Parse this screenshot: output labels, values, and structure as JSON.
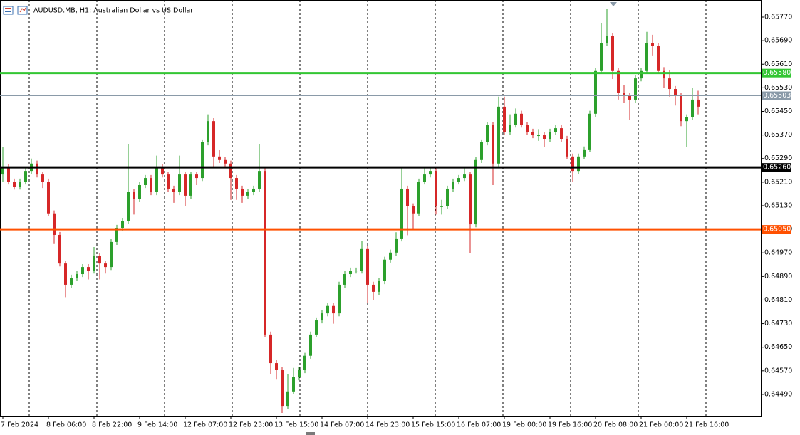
{
  "chart_data": {
    "type": "candlestick",
    "title": "AUDUSD.MB, H1:  Australian Dollar vs US Dollar",
    "up_color": "#2ca02c",
    "down_color": "#d62728",
    "open": [
      0.65236,
      0.6526,
      0.65212,
      0.65195,
      0.65212,
      0.65248,
      0.65273,
      0.65236,
      0.65212,
      0.65104,
      0.65031,
      0.64934,
      0.64862,
      0.64886,
      0.64898,
      0.64922,
      0.6491,
      0.64959,
      0.64934,
      0.64922,
      0.65007,
      0.65055,
      0.65079,
      0.65176,
      0.65152,
      0.652,
      0.65224,
      0.65176,
      0.6526,
      0.65236,
      0.65188,
      0.65176,
      0.65236,
      0.65164,
      0.65236,
      0.65224,
      0.65345,
      0.65417,
      0.65297,
      0.65285,
      0.65273,
      0.65224,
      0.65188,
      0.65164,
      0.65176,
      0.65188,
      0.65248,
      0.64693,
      0.64596,
      0.64572,
      0.64451,
      0.645,
      0.64548,
      0.64572,
      0.64621,
      0.64693,
      0.64741,
      0.64765,
      0.6479,
      0.64765,
      0.64862,
      0.64898,
      0.6491,
      0.6491,
      0.64983,
      0.64862,
      0.64838,
      0.64874,
      0.64947,
      0.64971,
      0.65019,
      0.65188,
      0.65128,
      0.65104,
      0.65212,
      0.65236,
      0.65248,
      0.65128,
      0.65128,
      0.65188,
      0.65212,
      0.65224,
      0.65236,
      0.65067,
      0.65285,
      0.65345,
      0.65405,
      0.65273,
      0.65466,
      0.65381,
      0.65405,
      0.65442,
      0.65405,
      0.65381,
      0.65369,
      0.65369,
      0.65357,
      0.65381,
      0.65393,
      0.65357,
      0.65297,
      0.65248,
      0.65297,
      0.65321,
      0.65442,
      0.65587,
      0.65683,
      0.65707,
      0.65587,
      0.65514,
      0.65502,
      0.6549,
      0.65562,
      0.65587,
      0.65683,
      0.65671,
      0.65587,
      0.65562,
      0.65526,
      0.65502,
      0.65417,
      0.6543,
      0.6549
    ],
    "high": [
      0.6533,
      0.6527,
      0.65222,
      0.65222,
      0.65258,
      0.6529,
      0.65283,
      0.65246,
      0.65222,
      0.65114,
      0.65041,
      0.64944,
      0.64896,
      0.64908,
      0.64932,
      0.64932,
      0.6499,
      0.64969,
      0.64944,
      0.65017,
      0.65065,
      0.65089,
      0.6534,
      0.65186,
      0.6521,
      0.65234,
      0.65234,
      0.653,
      0.6527,
      0.65246,
      0.65198,
      0.653,
      0.65246,
      0.65246,
      0.65246,
      0.65355,
      0.6544,
      0.65427,
      0.6532,
      0.65295,
      0.65283,
      0.65234,
      0.65198,
      0.65186,
      0.65198,
      0.6534,
      0.65258,
      0.64703,
      0.64606,
      0.64582,
      0.6456,
      0.6458,
      0.64582,
      0.64631,
      0.64703,
      0.64751,
      0.64775,
      0.648,
      0.648,
      0.64872,
      0.64908,
      0.6492,
      0.6492,
      0.6501,
      0.64993,
      0.64872,
      0.64884,
      0.64957,
      0.64981,
      0.6504,
      0.6526,
      0.65198,
      0.65138,
      0.65222,
      0.6526,
      0.65258,
      0.65258,
      0.6515,
      0.65198,
      0.65222,
      0.65234,
      0.6526,
      0.65246,
      0.65295,
      0.65355,
      0.65415,
      0.65415,
      0.655,
      0.655,
      0.6544,
      0.6546,
      0.65452,
      0.65415,
      0.65391,
      0.6539,
      0.65379,
      0.65391,
      0.65403,
      0.65403,
      0.65367,
      0.65307,
      0.65307,
      0.65331,
      0.65452,
      0.65597,
      0.6575,
      0.65797,
      0.65717,
      0.65597,
      0.6554,
      0.65512,
      0.65572,
      0.65597,
      0.6572,
      0.6571,
      0.65681,
      0.656,
      0.6559,
      0.65536,
      0.65512,
      0.6544,
      0.6553,
      0.6552
    ],
    "low": [
      0.6521,
      0.65202,
      0.65185,
      0.65185,
      0.65202,
      0.65238,
      0.65226,
      0.6519,
      0.65094,
      0.65,
      0.64924,
      0.6482,
      0.64852,
      0.64876,
      0.64888,
      0.6488,
      0.649,
      0.6488,
      0.649,
      0.64912,
      0.64997,
      0.65045,
      0.65069,
      0.651,
      0.65142,
      0.6519,
      0.65166,
      0.65166,
      0.65226,
      0.65178,
      0.6514,
      0.65166,
      0.6513,
      0.65154,
      0.652,
      0.65214,
      0.65335,
      0.6526,
      0.65275,
      0.65263,
      0.6515,
      0.6515,
      0.6514,
      0.65154,
      0.65166,
      0.65178,
      0.64683,
      0.6456,
      0.6454,
      0.64427,
      0.64441,
      0.6449,
      0.64538,
      0.64562,
      0.64611,
      0.64683,
      0.64731,
      0.64755,
      0.6473,
      0.64755,
      0.64852,
      0.64888,
      0.649,
      0.649,
      0.648,
      0.6481,
      0.64828,
      0.64864,
      0.64937,
      0.64961,
      0.65009,
      0.6503,
      0.6505,
      0.65094,
      0.65202,
      0.65226,
      0.651,
      0.651,
      0.65118,
      0.65178,
      0.65202,
      0.65214,
      0.6497,
      0.65057,
      0.65275,
      0.65335,
      0.652,
      0.65263,
      0.65371,
      0.65371,
      0.65395,
      0.65395,
      0.65371,
      0.65359,
      0.6535,
      0.6533,
      0.65347,
      0.65371,
      0.65347,
      0.65287,
      0.6521,
      0.65238,
      0.65287,
      0.65311,
      0.65432,
      0.65577,
      0.65673,
      0.6556,
      0.6549,
      0.6548,
      0.6542,
      0.6548,
      0.65552,
      0.65577,
      0.6564,
      0.65577,
      0.6553,
      0.655,
      0.6547,
      0.654,
      0.6533,
      0.6542,
      0.6544
    ],
    "close": [
      0.6526,
      0.65212,
      0.65195,
      0.65212,
      0.65248,
      0.65273,
      0.65236,
      0.65212,
      0.65104,
      0.65031,
      0.64934,
      0.64862,
      0.64886,
      0.64898,
      0.64922,
      0.6491,
      0.64959,
      0.64934,
      0.64922,
      0.65007,
      0.65055,
      0.65079,
      0.65176,
      0.65152,
      0.652,
      0.65224,
      0.65176,
      0.6526,
      0.65236,
      0.65188,
      0.65176,
      0.65236,
      0.65164,
      0.65236,
      0.65224,
      0.65345,
      0.65417,
      0.65297,
      0.65285,
      0.65273,
      0.65224,
      0.65188,
      0.65164,
      0.65176,
      0.65188,
      0.65248,
      0.64693,
      0.64596,
      0.64572,
      0.64451,
      0.645,
      0.64548,
      0.64572,
      0.64621,
      0.64693,
      0.64741,
      0.64765,
      0.6479,
      0.64765,
      0.64862,
      0.64898,
      0.6491,
      0.6491,
      0.64983,
      0.64862,
      0.64838,
      0.64874,
      0.64947,
      0.64971,
      0.65019,
      0.65188,
      0.65128,
      0.65104,
      0.65212,
      0.65236,
      0.65248,
      0.65128,
      0.65128,
      0.65188,
      0.65212,
      0.65224,
      0.65236,
      0.65067,
      0.65285,
      0.65345,
      0.65405,
      0.65273,
      0.65466,
      0.65381,
      0.65405,
      0.65442,
      0.65405,
      0.65381,
      0.65369,
      0.65369,
      0.65357,
      0.65381,
      0.65393,
      0.65357,
      0.65297,
      0.65248,
      0.65297,
      0.65321,
      0.65442,
      0.65587,
      0.65683,
      0.65707,
      0.65587,
      0.65514,
      0.65502,
      0.6549,
      0.65562,
      0.65587,
      0.65683,
      0.65671,
      0.65587,
      0.65562,
      0.65526,
      0.65502,
      0.65417,
      0.6543,
      0.6549,
      0.65466
    ],
    "xlim": [
      -0.5,
      133
    ],
    "xticks": [
      {
        "value": 0,
        "label": "7 Feb 2024"
      },
      {
        "value": 8,
        "label": "8 Feb 06:00"
      },
      {
        "value": 16,
        "label": "8 Feb 22:00"
      },
      {
        "value": 24,
        "label": "9 Feb 14:00"
      },
      {
        "value": 32,
        "label": "12 Feb 07:00"
      },
      {
        "value": 40,
        "label": "12 Feb 23:00"
      },
      {
        "value": 48,
        "label": "13 Feb 15:00"
      },
      {
        "value": 56,
        "label": "14 Feb 07:00"
      },
      {
        "value": 64,
        "label": "14 Feb 23:00"
      },
      {
        "value": 72,
        "label": "15 Feb 15:00"
      },
      {
        "value": 80,
        "label": "16 Feb 07:00"
      },
      {
        "value": 88,
        "label": "19 Feb 00:00"
      },
      {
        "value": 96,
        "label": "19 Feb 16:00"
      },
      {
        "value": 104,
        "label": "20 Feb 08:00"
      },
      {
        "value": 112,
        "label": "21 Feb 00:00"
      },
      {
        "value": 120,
        "label": "21 Feb 16:00"
      }
    ],
    "ylim": [
      0.64415,
      0.65828
    ],
    "yticks": [
      {
        "value": 0.6577,
        "label": "0.65770"
      },
      {
        "value": 0.6569,
        "label": "0.65690"
      },
      {
        "value": 0.6561,
        "label": "0.65610"
      },
      {
        "value": 0.6553,
        "label": "0.65530"
      },
      {
        "value": 0.6545,
        "label": "0.65450"
      },
      {
        "value": 0.6537,
        "label": "0.65370"
      },
      {
        "value": 0.6529,
        "label": "0.65290"
      },
      {
        "value": 0.6521,
        "label": "0.65210"
      },
      {
        "value": 0.6513,
        "label": "0.65130"
      },
      {
        "value": 0.6505,
        "label": "0.65050"
      },
      {
        "value": 0.6497,
        "label": "0.64970"
      },
      {
        "value": 0.6489,
        "label": "0.64890"
      },
      {
        "value": 0.6481,
        "label": "0.64810"
      },
      {
        "value": 0.6473,
        "label": "0.64730"
      },
      {
        "value": 0.6465,
        "label": "0.64650"
      },
      {
        "value": 0.6457,
        "label": "0.64570"
      },
      {
        "value": 0.6449,
        "label": "0.64490"
      }
    ],
    "levels": [
      {
        "value": 0.6558,
        "label": "0.65580",
        "color": "#33c633",
        "width": 3
      },
      {
        "value": 0.65503,
        "label": "0.65503",
        "color": "#8a9aa8",
        "width": 1
      },
      {
        "value": 0.6526,
        "label": "0.65260",
        "color": "#000000",
        "width": 3
      },
      {
        "value": 0.6505,
        "label": "0.65050",
        "color": "#ff5000",
        "width": 3
      }
    ]
  }
}
